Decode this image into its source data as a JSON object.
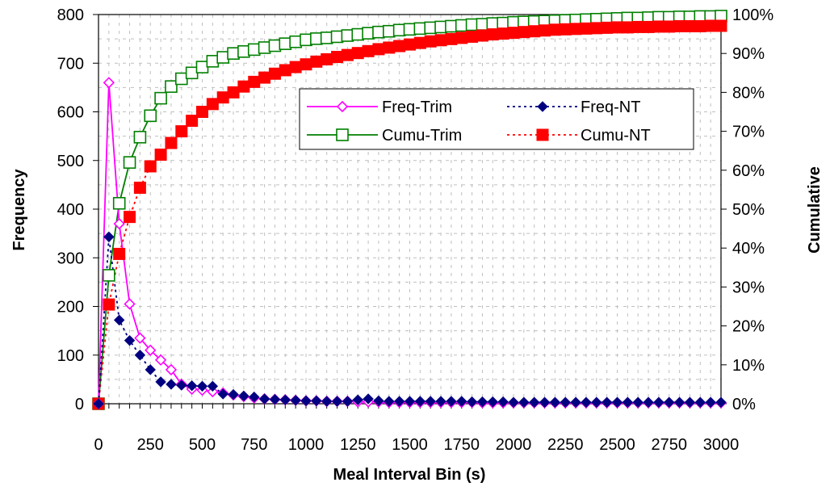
{
  "chart_data": {
    "type": "line",
    "title": "",
    "xlabel": "Meal Interval Bin (s)",
    "ylabel": "Frequency",
    "y2label": "Cumulative",
    "xlim": [
      0,
      3000
    ],
    "ylim": [
      0,
      800
    ],
    "y2lim": [
      0,
      1
    ],
    "x_ticks": [
      "0",
      "250",
      "500",
      "750",
      "1000",
      "1250",
      "1500",
      "1750",
      "2000",
      "2250",
      "2500",
      "2750",
      "3000"
    ],
    "y_ticks": [
      "0",
      "100",
      "200",
      "300",
      "400",
      "500",
      "600",
      "700",
      "800"
    ],
    "y2_ticks": [
      "0%",
      "10%",
      "20%",
      "30%",
      "40%",
      "50%",
      "60%",
      "70%",
      "80%",
      "90%",
      "100%"
    ],
    "grid": true,
    "legend_position": "upper-middle-right",
    "x": [
      0,
      50,
      100,
      150,
      200,
      250,
      300,
      350,
      400,
      450,
      500,
      550,
      600,
      650,
      700,
      750,
      800,
      850,
      900,
      950,
      1000,
      1050,
      1100,
      1150,
      1200,
      1250,
      1300,
      1350,
      1400,
      1450,
      1500,
      1550,
      1600,
      1650,
      1700,
      1750,
      1800,
      1850,
      1900,
      1950,
      2000,
      2050,
      2100,
      2150,
      2200,
      2250,
      2300,
      2350,
      2400,
      2450,
      2500,
      2550,
      2600,
      2650,
      2700,
      2750,
      2800,
      2850,
      2900,
      2950,
      3000
    ],
    "series": [
      {
        "name": "Freq-Trim",
        "axis": "left",
        "color": "#ff00ff",
        "line": "solid",
        "marker": "diamond-open",
        "values": [
          0,
          660,
          370,
          205,
          135,
          110,
          90,
          70,
          40,
          30,
          28,
          25,
          22,
          18,
          15,
          12,
          10,
          9,
          8,
          7,
          6,
          6,
          5,
          5,
          5,
          4,
          4,
          4,
          3,
          3,
          3,
          3,
          3,
          3,
          3,
          3,
          3,
          2,
          2,
          2,
          2,
          2,
          2,
          2,
          2,
          2,
          2,
          2,
          2,
          2,
          2,
          2,
          2,
          2,
          2,
          2,
          2,
          2,
          2,
          2,
          2
        ]
      },
      {
        "name": "Freq-NT",
        "axis": "left",
        "color": "#000080",
        "line": "dotted",
        "marker": "diamond-filled",
        "values": [
          0,
          343,
          172,
          130,
          100,
          70,
          45,
          40,
          38,
          37,
          36,
          36,
          20,
          19,
          16,
          14,
          10,
          9,
          8,
          7,
          6,
          6,
          5,
          5,
          5,
          8,
          10,
          6,
          5,
          5,
          5,
          5,
          5,
          5,
          5,
          5,
          4,
          4,
          4,
          4,
          3,
          3,
          3,
          3,
          3,
          3,
          3,
          3,
          3,
          3,
          3,
          3,
          3,
          3,
          3,
          3,
          3,
          3,
          3,
          3,
          3
        ]
      },
      {
        "name": "Cumu-Trim",
        "axis": "right",
        "color": "#008000",
        "line": "solid",
        "marker": "square-open",
        "values": [
          0,
          0.33,
          0.515,
          0.62,
          0.685,
          0.74,
          0.785,
          0.815,
          0.835,
          0.85,
          0.865,
          0.88,
          0.89,
          0.9,
          0.905,
          0.91,
          0.915,
          0.92,
          0.925,
          0.93,
          0.935,
          0.938,
          0.94,
          0.943,
          0.946,
          0.949,
          0.952,
          0.955,
          0.957,
          0.96,
          0.962,
          0.964,
          0.966,
          0.968,
          0.97,
          0.972,
          0.974,
          0.975,
          0.977,
          0.978,
          0.98,
          0.981,
          0.982,
          0.983,
          0.984,
          0.985,
          0.986,
          0.987,
          0.988,
          0.989,
          0.99,
          0.991,
          0.991,
          0.992,
          0.993,
          0.993,
          0.994,
          0.994,
          0.995,
          0.995,
          0.996
        ]
      },
      {
        "name": "Cumu-NT",
        "axis": "right",
        "color": "#ff0000",
        "line": "dotted",
        "marker": "square-filled",
        "values": [
          0,
          0.255,
          0.385,
          0.48,
          0.555,
          0.61,
          0.64,
          0.67,
          0.7,
          0.727,
          0.75,
          0.77,
          0.787,
          0.8,
          0.815,
          0.827,
          0.838,
          0.848,
          0.857,
          0.865,
          0.872,
          0.879,
          0.885,
          0.891,
          0.896,
          0.901,
          0.906,
          0.911,
          0.915,
          0.919,
          0.923,
          0.927,
          0.931,
          0.934,
          0.937,
          0.94,
          0.943,
          0.946,
          0.949,
          0.951,
          0.953,
          0.955,
          0.957,
          0.959,
          0.961,
          0.962,
          0.963,
          0.964,
          0.965,
          0.966,
          0.967,
          0.967,
          0.968,
          0.968,
          0.969,
          0.969,
          0.97,
          0.97,
          0.97,
          0.971,
          0.971
        ]
      }
    ]
  }
}
